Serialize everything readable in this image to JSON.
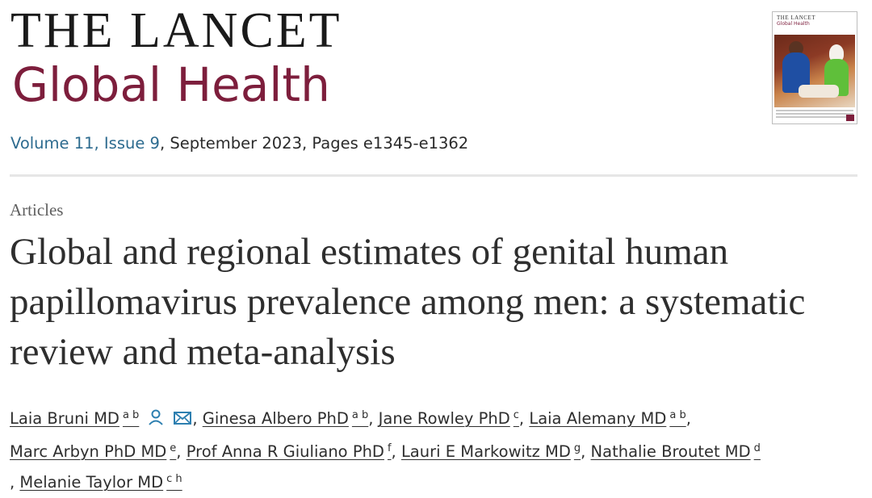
{
  "journal": {
    "name_line1": "THE LANCET",
    "name_line2": "Global Health",
    "accent_color": "#7d1e3c",
    "link_color": "#2d6b8f"
  },
  "issue": {
    "volume_issue": "Volume 11, Issue 9",
    "details": ", September 2023, Pages e1345-e1362"
  },
  "cover": {
    "title": "THE LANCET",
    "subtitle": "Global Health"
  },
  "article": {
    "type": "Articles",
    "title": "Global and regional estimates of genital human papillomavirus prevalence among men: a systematic review and meta-analysis"
  },
  "authors": [
    {
      "name": "Laia Bruni MD",
      "affiliations": "a b",
      "icons": [
        "person-icon",
        "envelope-icon"
      ]
    },
    {
      "name": "Ginesa Albero PhD",
      "affiliations": "a b"
    },
    {
      "name": "Jane Rowley PhD",
      "affiliations": "c"
    },
    {
      "name": "Laia Alemany MD",
      "affiliations": "a b"
    },
    {
      "name": "Marc Arbyn PhD MD",
      "affiliations": "e"
    },
    {
      "name": "Prof Anna R Giuliano PhD",
      "affiliations": "f"
    },
    {
      "name": "Lauri E Markowitz MD",
      "affiliations": "g"
    },
    {
      "name": "Nathalie Broutet MD",
      "affiliations": "d"
    },
    {
      "name": "Melanie Taylor MD",
      "affiliations": "c h"
    }
  ],
  "separator": ","
}
